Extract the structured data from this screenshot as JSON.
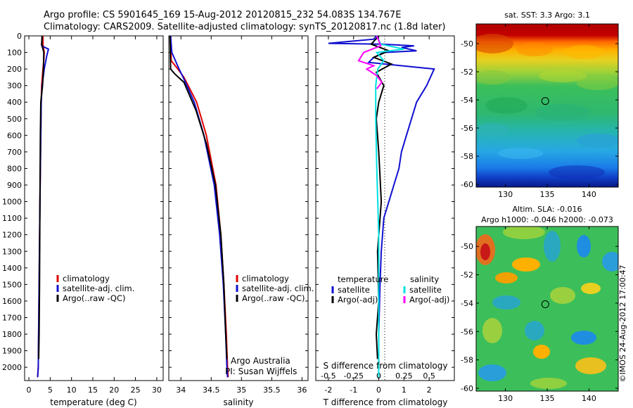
{
  "title": {
    "line1": "Argo profile: CS 5901645_169 15-Aug-2012 20120815_232 54.083S 134.767E",
    "line2": "Climatology: CARS2009. Satellite-adjusted climatology: synTS_20120817.nc (1.8d later)"
  },
  "side_label": "©IMOS 24-Aug-2012 17:00:47",
  "colors": {
    "climatology": "#e00000",
    "satellite": "#1010d0",
    "argo": "#000000",
    "sal_satellite": "#00e0e0",
    "sal_argo": "#ff00ff"
  },
  "chart_data": [
    {
      "type": "line",
      "panel": "temperature",
      "xlabel": "temperature (deg C)",
      "ylabel": "",
      "xlim": [
        -1,
        31.5
      ],
      "ylim": [
        2080,
        0
      ],
      "xticks": [
        "0",
        "5",
        "10",
        "15",
        "20",
        "25",
        "30"
      ],
      "xtick_values": [
        0,
        5,
        10,
        15,
        20,
        25,
        30
      ],
      "yticks": [
        "0",
        "100",
        "200",
        "300",
        "400",
        "500",
        "600",
        "700",
        "800",
        "900",
        "1000",
        "1100",
        "1200",
        "1300",
        "1400",
        "1500",
        "1600",
        "1700",
        "1800",
        "1900",
        "2000"
      ],
      "ytick_values": [
        0,
        100,
        200,
        300,
        400,
        500,
        600,
        700,
        800,
        900,
        1000,
        1100,
        1200,
        1300,
        1400,
        1500,
        1600,
        1700,
        1800,
        1900,
        2000
      ],
      "legend": [
        "climatology",
        "satellite-adj. clim.",
        "Argo(..raw -QC)"
      ],
      "legend_position": "lower-right",
      "series": [
        {
          "name": "climatology",
          "color": "climatology",
          "x": [
            3.3,
            3.3,
            3.6,
            3.5,
            3.3,
            3.0,
            2.9,
            2.8,
            2.6,
            2.4,
            2.2,
            2.05
          ],
          "y": [
            0,
            50,
            100,
            150,
            200,
            300,
            400,
            600,
            1000,
            1500,
            2000,
            2060
          ]
        },
        {
          "name": "satellite-adj. clim.",
          "color": "satellite",
          "x": [
            3.1,
            3.0,
            4.6,
            4.2,
            3.6,
            3.1,
            2.9,
            2.8,
            2.6,
            2.4,
            2.2,
            2.05
          ],
          "y": [
            0,
            60,
            80,
            120,
            200,
            300,
            400,
            600,
            1000,
            1500,
            2000,
            2060
          ]
        },
        {
          "name": "Argo(..raw -QC)",
          "color": "argo",
          "x": [
            3.1,
            3.0,
            3.5,
            3.4,
            3.2,
            2.8,
            2.7,
            2.6,
            2.5,
            2.4,
            2.3
          ],
          "y": [
            0,
            50,
            100,
            200,
            300,
            400,
            600,
            1000,
            1500,
            1800,
            1950
          ]
        }
      ]
    },
    {
      "type": "line",
      "panel": "salinity",
      "xlabel": "salinity",
      "xlim": [
        33.8,
        36.1
      ],
      "ylim": [
        2080,
        0
      ],
      "xticks": [
        "34",
        "34.5",
        "35",
        "35.5",
        "36"
      ],
      "xtick_values": [
        34,
        34.5,
        35,
        35.5,
        36
      ],
      "legend": [
        "climatology",
        "satellite-adj. clim.",
        "Argo(..raw -QC)"
      ],
      "legend_position": "lower-right",
      "annotation": [
        "Argo Australia",
        "PI: Susan Wijffels"
      ],
      "series": [
        {
          "name": "climatology",
          "color": "climatology",
          "x": [
            33.83,
            33.84,
            33.95,
            34.05,
            34.26,
            34.42,
            34.58,
            34.66,
            34.71,
            34.75,
            34.77,
            34.78
          ],
          "y": [
            0,
            150,
            200,
            250,
            400,
            600,
            900,
            1200,
            1500,
            1800,
            2000,
            2060
          ]
        },
        {
          "name": "satellite-adj. clim.",
          "color": "satellite",
          "x": [
            33.83,
            33.85,
            33.97,
            34.05,
            34.22,
            34.38,
            34.55,
            34.64,
            34.7,
            34.74,
            34.76,
            34.77
          ],
          "y": [
            0,
            100,
            200,
            260,
            400,
            600,
            900,
            1200,
            1500,
            1800,
            2000,
            2060
          ]
        },
        {
          "name": "Argo(..raw -QC)",
          "color": "argo",
          "x": [
            33.82,
            33.83,
            33.9,
            34.05,
            34.25,
            34.42,
            34.57,
            34.66,
            34.71,
            34.74,
            34.76
          ],
          "y": [
            0,
            200,
            230,
            280,
            450,
            650,
            900,
            1200,
            1500,
            1800,
            1950
          ]
        }
      ]
    },
    {
      "type": "line",
      "panel": "difference",
      "xlabel": "T difference from climatology",
      "top_label": "S difference from climatology",
      "xlim": [
        -2.5,
        3
      ],
      "ylim": [
        2080,
        0
      ],
      "xticks": [
        "-2",
        "-1",
        "0",
        "1",
        "2"
      ],
      "xtick_values": [
        -2,
        -1,
        0,
        1,
        2
      ],
      "s_ticks": [
        "-0.5",
        "-0.25",
        "0",
        "0.25",
        "0.5"
      ],
      "s_tick_values": [
        -0.5,
        -0.25,
        0,
        0.25,
        0.5
      ],
      "legend_temperature": {
        "title": "temperature",
        "entries": [
          "satellite",
          "Argo(-adj)"
        ]
      },
      "legend_salinity": {
        "title": "salinity",
        "entries": [
          "satellite",
          "Argo(-adj)"
        ]
      },
      "series": [
        {
          "name": "satellite",
          "group": "temperature",
          "color": "satellite",
          "x": [
            -0.1,
            -0.2,
            -2.0,
            0.1,
            1.4,
            0.9,
            1.5,
            0.2,
            -0.2,
            -0.4,
            2.2,
            1.9,
            1.5,
            1.3,
            1.1,
            0.9,
            0.8,
            0.6,
            0.4,
            0.2,
            0.1,
            0.05,
            0,
            0
          ],
          "y": [
            0,
            20,
            45,
            50,
            60,
            70,
            90,
            100,
            130,
            160,
            200,
            300,
            400,
            500,
            600,
            700,
            800,
            900,
            1000,
            1100,
            1300,
            1500,
            1800,
            2060
          ]
        },
        {
          "name": "Argo(-adj)",
          "group": "temperature",
          "color": "argo",
          "x": [
            0,
            -0.3,
            0.4,
            -0.2,
            0.5,
            -0.1,
            0.2,
            0,
            -0.1,
            0,
            0.1,
            -0.05,
            0,
            -0.1,
            -0.05
          ],
          "y": [
            0,
            50,
            90,
            130,
            170,
            220,
            300,
            400,
            500,
            700,
            1000,
            1300,
            1600,
            1800,
            1950
          ]
        },
        {
          "name": "satellite",
          "group": "salinity",
          "color": "sal_satellite",
          "x": [
            -0.02,
            0.02,
            0.25,
            -0.02,
            0.05,
            -0.01,
            -0.03,
            -0.03,
            -0.02,
            -0.01,
            0,
            0,
            0,
            0
          ],
          "y": [
            0,
            50,
            80,
            100,
            150,
            200,
            300,
            500,
            800,
            1000,
            1200,
            1500,
            1800,
            2060
          ]
        },
        {
          "name": "Argo(-adj)",
          "group": "salinity",
          "color": "sal_argo",
          "x": [
            -0.02,
            0.02,
            -0.15,
            -0.2,
            -0.05,
            -0.12,
            -0.02,
            0.03,
            -0.02
          ],
          "y": [
            0,
            60,
            100,
            150,
            180,
            200,
            240,
            280,
            320
          ]
        }
      ]
    },
    {
      "type": "heatmap",
      "panel": "map-sst",
      "title": "sat. SST: 3.3 Argo: 3.1",
      "xlim": [
        126.5,
        143.5
      ],
      "ylim": [
        -60.2,
        -48.6
      ],
      "xticks": [
        "130",
        "135",
        "140"
      ],
      "xtick_values": [
        130,
        135,
        140
      ],
      "yticks": [
        "-50",
        "-52",
        "-54",
        "-56",
        "-58",
        "-60"
      ],
      "ytick_values": [
        -50,
        -52,
        -54,
        -56,
        -58,
        -60
      ],
      "marker": {
        "lon": 134.77,
        "lat": -54.08
      }
    },
    {
      "type": "heatmap",
      "panel": "map-sla",
      "title": "Altim. SLA: -0.016",
      "subtitle": "Argo h1000: -0.046 h2000: -0.073",
      "xlim": [
        126.5,
        143.5
      ],
      "ylim": [
        -60.2,
        -48.6
      ],
      "xticks": [
        "130",
        "135",
        "140"
      ],
      "xtick_values": [
        130,
        135,
        140
      ],
      "yticks": [
        "-50",
        "-52",
        "-54",
        "-56",
        "-58",
        "-60"
      ],
      "ytick_values": [
        -50,
        -52,
        -54,
        -56,
        -58,
        -60
      ],
      "marker": {
        "lon": 134.77,
        "lat": -54.08
      }
    }
  ]
}
